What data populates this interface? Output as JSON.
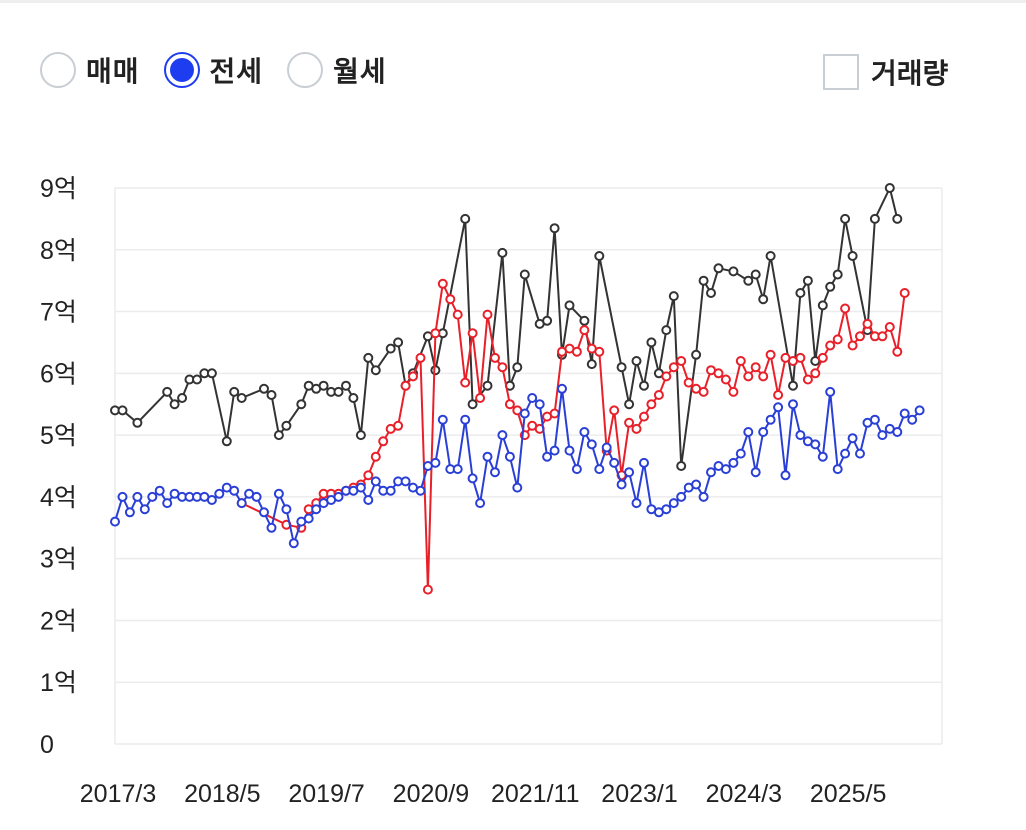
{
  "controls": {
    "radios": [
      {
        "label": "매매",
        "selected": false
      },
      {
        "label": "전세",
        "selected": true
      },
      {
        "label": "월세",
        "selected": false
      }
    ],
    "checkbox": {
      "label": "거래량",
      "checked": false
    }
  },
  "chart_data": {
    "type": "line",
    "ylim": [
      0,
      9
    ],
    "yticks": [
      "0",
      "1억",
      "2억",
      "3억",
      "4억",
      "5억",
      "6억",
      "7억",
      "8억",
      "9억"
    ],
    "xlim": [
      0,
      111
    ],
    "xticks": [
      {
        "label": "2017/3",
        "x": 0
      },
      {
        "label": "2018/5",
        "x": 14
      },
      {
        "label": "2019/7",
        "x": 28
      },
      {
        "label": "2020/9",
        "x": 42
      },
      {
        "label": "2021/11",
        "x": 56
      },
      {
        "label": "2023/1",
        "x": 70
      },
      {
        "label": "2024/3",
        "x": 84
      },
      {
        "label": "2025/5",
        "x": 98
      }
    ],
    "grid": true,
    "colors": {
      "black": "#333333",
      "red": "#e8202a",
      "blue": "#2a3fd6",
      "grid": "#ececec"
    },
    "series": [
      {
        "color": "#333333",
        "points": [
          [
            0,
            5.4
          ],
          [
            1,
            5.4
          ],
          [
            3,
            5.2
          ],
          [
            7,
            5.7
          ],
          [
            8,
            5.5
          ],
          [
            9,
            5.6
          ],
          [
            10,
            5.9
          ],
          [
            11,
            5.9
          ],
          [
            12,
            6.0
          ],
          [
            13,
            6.0
          ],
          [
            15,
            4.9
          ],
          [
            16,
            5.7
          ],
          [
            17,
            5.6
          ],
          [
            20,
            5.75
          ],
          [
            21,
            5.65
          ],
          [
            22,
            5.0
          ],
          [
            23,
            5.15
          ],
          [
            25,
            5.5
          ],
          [
            26,
            5.8
          ],
          [
            27,
            5.75
          ],
          [
            28,
            5.8
          ],
          [
            29,
            5.7
          ],
          [
            30,
            5.7
          ],
          [
            31,
            5.8
          ],
          [
            32,
            5.6
          ],
          [
            33,
            5.0
          ],
          [
            34,
            6.25
          ],
          [
            35,
            6.05
          ],
          [
            37,
            6.4
          ],
          [
            38,
            6.5
          ],
          [
            39,
            5.8
          ],
          [
            40,
            6.0
          ],
          [
            42,
            6.6
          ],
          [
            43,
            6.05
          ],
          [
            44,
            6.65
          ],
          [
            47,
            8.5
          ],
          [
            48,
            5.5
          ],
          [
            50,
            5.8
          ],
          [
            52,
            7.95
          ],
          [
            53,
            5.8
          ],
          [
            54,
            6.1
          ],
          [
            55,
            7.6
          ],
          [
            57,
            6.8
          ],
          [
            58,
            6.85
          ],
          [
            59,
            8.35
          ],
          [
            60,
            6.3
          ],
          [
            61,
            7.1
          ],
          [
            63,
            6.85
          ],
          [
            64,
            6.15
          ],
          [
            65,
            7.9
          ],
          [
            68,
            6.1
          ],
          [
            69,
            5.5
          ],
          [
            70,
            6.2
          ],
          [
            71,
            5.8
          ],
          [
            72,
            6.5
          ],
          [
            73,
            6.0
          ],
          [
            74,
            6.7
          ],
          [
            75,
            7.25
          ],
          [
            76,
            4.5
          ],
          [
            78,
            6.3
          ],
          [
            79,
            7.5
          ],
          [
            80,
            7.3
          ],
          [
            81,
            7.7
          ],
          [
            83,
            7.65
          ],
          [
            85,
            7.5
          ],
          [
            86,
            7.6
          ],
          [
            87,
            7.2
          ],
          [
            88,
            7.9
          ],
          [
            91,
            5.8
          ],
          [
            92,
            7.3
          ],
          [
            93,
            7.5
          ],
          [
            94,
            6.2
          ],
          [
            95,
            7.1
          ],
          [
            96,
            7.4
          ],
          [
            97,
            7.6
          ],
          [
            98,
            8.5
          ],
          [
            99,
            7.9
          ],
          [
            101,
            6.7
          ],
          [
            102,
            8.5
          ],
          [
            104,
            9.0
          ],
          [
            105,
            8.5
          ]
        ]
      },
      {
        "color": "#e8202a",
        "points": [
          [
            17,
            3.9
          ],
          [
            23,
            3.55
          ],
          [
            25,
            3.5
          ],
          [
            26,
            3.8
          ],
          [
            27,
            3.9
          ],
          [
            28,
            4.05
          ],
          [
            29,
            4.05
          ],
          [
            30,
            4.05
          ],
          [
            31,
            4.1
          ],
          [
            32,
            4.15
          ],
          [
            33,
            4.2
          ],
          [
            34,
            4.35
          ],
          [
            35,
            4.65
          ],
          [
            36,
            4.9
          ],
          [
            37,
            5.1
          ],
          [
            38,
            5.15
          ],
          [
            39,
            5.8
          ],
          [
            40,
            5.95
          ],
          [
            41,
            6.25
          ],
          [
            42,
            2.5
          ],
          [
            43,
            6.65
          ],
          [
            44,
            7.45
          ],
          [
            45,
            7.2
          ],
          [
            46,
            6.95
          ],
          [
            47,
            5.85
          ],
          [
            48,
            6.65
          ],
          [
            49,
            5.6
          ],
          [
            50,
            6.95
          ],
          [
            51,
            6.25
          ],
          [
            52,
            6.1
          ],
          [
            53,
            5.5
          ],
          [
            54,
            5.4
          ],
          [
            55,
            5.0
          ],
          [
            56,
            5.15
          ],
          [
            57,
            5.1
          ],
          [
            58,
            5.3
          ],
          [
            59,
            5.35
          ],
          [
            60,
            6.35
          ],
          [
            61,
            6.4
          ],
          [
            62,
            6.35
          ],
          [
            63,
            6.7
          ],
          [
            64,
            6.4
          ],
          [
            65,
            6.35
          ],
          [
            66,
            4.75
          ],
          [
            67,
            5.4
          ],
          [
            68,
            4.35
          ],
          [
            69,
            5.2
          ],
          [
            70,
            5.1
          ],
          [
            71,
            5.3
          ],
          [
            72,
            5.5
          ],
          [
            73,
            5.65
          ],
          [
            74,
            5.95
          ],
          [
            75,
            6.1
          ],
          [
            76,
            6.2
          ],
          [
            77,
            5.85
          ],
          [
            78,
            5.75
          ],
          [
            79,
            5.7
          ],
          [
            80,
            6.05
          ],
          [
            81,
            6.0
          ],
          [
            82,
            5.9
          ],
          [
            83,
            5.7
          ],
          [
            84,
            6.2
          ],
          [
            85,
            5.95
          ],
          [
            86,
            6.1
          ],
          [
            87,
            5.95
          ],
          [
            88,
            6.3
          ],
          [
            89,
            5.65
          ],
          [
            90,
            6.25
          ],
          [
            91,
            6.2
          ],
          [
            92,
            6.25
          ],
          [
            93,
            5.9
          ],
          [
            94,
            6.0
          ],
          [
            95,
            6.25
          ],
          [
            96,
            6.45
          ],
          [
            97,
            6.55
          ],
          [
            98,
            7.05
          ],
          [
            99,
            6.45
          ],
          [
            100,
            6.6
          ],
          [
            101,
            6.8
          ],
          [
            102,
            6.6
          ],
          [
            103,
            6.6
          ],
          [
            104,
            6.75
          ],
          [
            105,
            6.35
          ],
          [
            106,
            7.3
          ]
        ]
      },
      {
        "color": "#2a3fd6",
        "points": [
          [
            0,
            3.6
          ],
          [
            1,
            4.0
          ],
          [
            2,
            3.75
          ],
          [
            3,
            4.0
          ],
          [
            4,
            3.8
          ],
          [
            5,
            4.0
          ],
          [
            6,
            4.1
          ],
          [
            7,
            3.9
          ],
          [
            8,
            4.05
          ],
          [
            9,
            4.0
          ],
          [
            10,
            4.0
          ],
          [
            11,
            4.0
          ],
          [
            12,
            4.0
          ],
          [
            13,
            3.95
          ],
          [
            14,
            4.05
          ],
          [
            15,
            4.15
          ],
          [
            16,
            4.1
          ],
          [
            17,
            3.9
          ],
          [
            18,
            4.05
          ],
          [
            19,
            4.0
          ],
          [
            20,
            3.75
          ],
          [
            21,
            3.5
          ],
          [
            22,
            4.05
          ],
          [
            23,
            3.8
          ],
          [
            24,
            3.25
          ],
          [
            25,
            3.6
          ],
          [
            26,
            3.65
          ],
          [
            27,
            3.8
          ],
          [
            28,
            3.9
          ],
          [
            29,
            3.95
          ],
          [
            30,
            4.0
          ],
          [
            31,
            4.1
          ],
          [
            32,
            4.1
          ],
          [
            33,
            4.15
          ],
          [
            34,
            3.95
          ],
          [
            35,
            4.25
          ],
          [
            36,
            4.1
          ],
          [
            37,
            4.1
          ],
          [
            38,
            4.25
          ],
          [
            39,
            4.25
          ],
          [
            40,
            4.15
          ],
          [
            41,
            4.1
          ],
          [
            42,
            4.5
          ],
          [
            43,
            4.55
          ],
          [
            44,
            5.25
          ],
          [
            45,
            4.45
          ],
          [
            46,
            4.45
          ],
          [
            47,
            5.25
          ],
          [
            48,
            4.3
          ],
          [
            49,
            3.9
          ],
          [
            50,
            4.65
          ],
          [
            51,
            4.4
          ],
          [
            52,
            5.0
          ],
          [
            53,
            4.65
          ],
          [
            54,
            4.15
          ],
          [
            55,
            5.35
          ],
          [
            56,
            5.6
          ],
          [
            57,
            5.5
          ],
          [
            58,
            4.65
          ],
          [
            59,
            4.75
          ],
          [
            60,
            5.75
          ],
          [
            61,
            4.75
          ],
          [
            62,
            4.45
          ],
          [
            63,
            5.05
          ],
          [
            64,
            4.85
          ],
          [
            65,
            4.45
          ],
          [
            66,
            4.8
          ],
          [
            67,
            4.55
          ],
          [
            68,
            4.2
          ],
          [
            69,
            4.4
          ],
          [
            70,
            3.9
          ],
          [
            71,
            4.55
          ],
          [
            72,
            3.8
          ],
          [
            73,
            3.75
          ],
          [
            74,
            3.8
          ],
          [
            75,
            3.9
          ],
          [
            76,
            4.0
          ],
          [
            77,
            4.15
          ],
          [
            78,
            4.2
          ],
          [
            79,
            4.0
          ],
          [
            80,
            4.4
          ],
          [
            81,
            4.5
          ],
          [
            82,
            4.45
          ],
          [
            83,
            4.55
          ],
          [
            84,
            4.7
          ],
          [
            85,
            5.05
          ],
          [
            86,
            4.4
          ],
          [
            87,
            5.05
          ],
          [
            88,
            5.25
          ],
          [
            89,
            5.45
          ],
          [
            90,
            4.35
          ],
          [
            91,
            5.5
          ],
          [
            92,
            5.0
          ],
          [
            93,
            4.9
          ],
          [
            94,
            4.85
          ],
          [
            95,
            4.65
          ],
          [
            96,
            5.7
          ],
          [
            97,
            4.45
          ],
          [
            98,
            4.7
          ],
          [
            99,
            4.95
          ],
          [
            100,
            4.7
          ],
          [
            101,
            5.2
          ],
          [
            102,
            5.25
          ],
          [
            103,
            5.0
          ],
          [
            104,
            5.1
          ],
          [
            105,
            5.05
          ],
          [
            106,
            5.35
          ],
          [
            107,
            5.25
          ],
          [
            108,
            5.4
          ]
        ]
      }
    ]
  }
}
